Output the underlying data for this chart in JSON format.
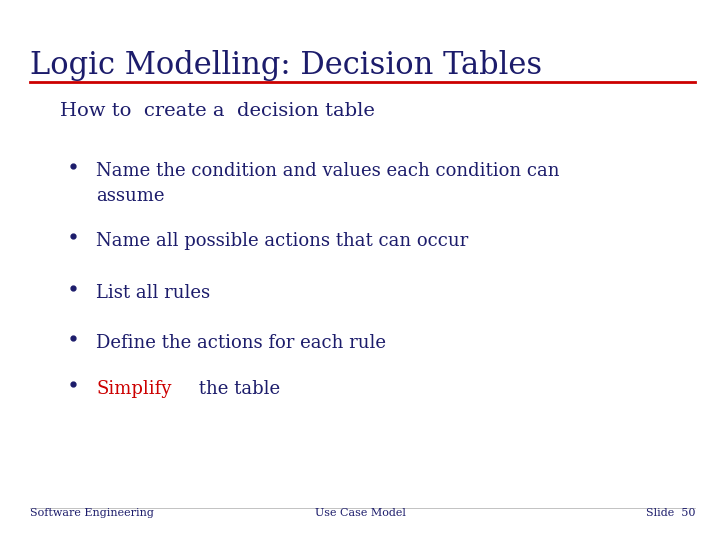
{
  "title": "Logic Modelling: Decision Tables",
  "subtitle": "How to  create a  decision table",
  "title_color": "#1c1c6b",
  "subtitle_color": "#1c1c6b",
  "line_color": "#cc0000",
  "background_color": "#ffffff",
  "bullet_color": "#1c1c6b",
  "bullet_items": [
    {
      "text": "Name the condition and values each condition can\nassume",
      "color": "#1c1c6b"
    },
    {
      "text": "Name all possible actions that can occur",
      "color": "#1c1c6b"
    },
    {
      "text": "List all rules",
      "color": "#1c1c6b"
    },
    {
      "text": "Define the actions for each rule",
      "color": "#1c1c6b"
    },
    {
      "text_parts": [
        {
          "text": "Simplify",
          "color": "#cc0000"
        },
        {
          "text": " the table",
          "color": "#1c1c6b"
        }
      ]
    }
  ],
  "footer_left": "Software Engineering",
  "footer_center": "Use Case Model",
  "footer_right": "Slide  50",
  "footer_color": "#1c1c6b",
  "title_fontsize": 22,
  "subtitle_fontsize": 14,
  "bullet_fontsize": 13,
  "footer_fontsize": 8
}
